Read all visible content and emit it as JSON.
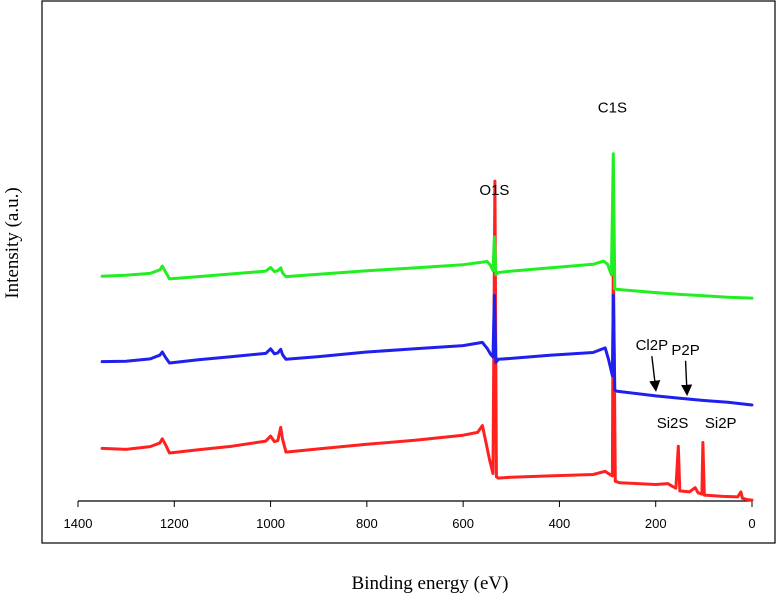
{
  "chart_data": {
    "type": "line",
    "title": "",
    "xlabel": "Binding energy (eV)",
    "ylabel": "Intensity (a.u.)",
    "xlim": [
      1400,
      0
    ],
    "xreversed": true,
    "xticks": [
      "1400",
      "1200",
      "1000",
      "800",
      "600",
      "400",
      "200",
      "0"
    ],
    "xtick_values": [
      1400,
      1200,
      1000,
      800,
      600,
      400,
      200,
      0
    ],
    "ylim": [
      0,
      100
    ],
    "yticks_shown": false,
    "series": [
      {
        "name": "red-spectrum",
        "color": "#ff2020",
        "points": [
          [
            1350,
            11.5
          ],
          [
            1300,
            11.3
          ],
          [
            1250,
            11.9
          ],
          [
            1230,
            12.7
          ],
          [
            1225,
            13.6
          ],
          [
            1218,
            12.3
          ],
          [
            1210,
            10.5
          ],
          [
            1150,
            11.2
          ],
          [
            1080,
            12.0
          ],
          [
            1010,
            13.1
          ],
          [
            1000,
            14.2
          ],
          [
            992,
            13.0
          ],
          [
            985,
            13.2
          ],
          [
            979,
            16.1
          ],
          [
            975,
            13.5
          ],
          [
            968,
            10.7
          ],
          [
            900,
            11.4
          ],
          [
            800,
            12.4
          ],
          [
            700,
            13.3
          ],
          [
            600,
            14.4
          ],
          [
            570,
            15.0
          ],
          [
            560,
            16.5
          ],
          [
            553,
            13.0
          ],
          [
            545,
            9.0
          ],
          [
            538,
            6.0
          ],
          [
            534,
            70.0
          ],
          [
            531,
            5.3
          ],
          [
            527,
            5.0
          ],
          [
            500,
            5.2
          ],
          [
            420,
            5.5
          ],
          [
            330,
            5.8
          ],
          [
            305,
            6.5
          ],
          [
            298,
            6.0
          ],
          [
            290,
            5.5
          ],
          [
            288,
            56.0
          ],
          [
            284,
            4.3
          ],
          [
            275,
            4.0
          ],
          [
            200,
            3.6
          ],
          [
            175,
            3.8
          ],
          [
            165,
            3.2
          ],
          [
            158,
            2.8
          ],
          [
            153,
            12.0
          ],
          [
            150,
            2.2
          ],
          [
            130,
            2.0
          ],
          [
            118,
            2.9
          ],
          [
            112,
            1.8
          ],
          [
            104,
            1.5
          ],
          [
            102,
            12.8
          ],
          [
            99,
            1.3
          ],
          [
            60,
            1.0
          ],
          [
            30,
            0.9
          ],
          [
            23,
            2.0
          ],
          [
            20,
            0.6
          ],
          [
            10,
            0.3
          ],
          [
            0,
            0.2
          ]
        ]
      },
      {
        "name": "blue-spectrum",
        "color": "#2020ee",
        "points": [
          [
            1350,
            30.5
          ],
          [
            1300,
            30.6
          ],
          [
            1250,
            31.1
          ],
          [
            1230,
            31.9
          ],
          [
            1225,
            32.6
          ],
          [
            1218,
            31.4
          ],
          [
            1210,
            30.2
          ],
          [
            1150,
            30.9
          ],
          [
            1080,
            31.6
          ],
          [
            1010,
            32.3
          ],
          [
            1000,
            33.3
          ],
          [
            992,
            32.2
          ],
          [
            985,
            32.4
          ],
          [
            979,
            33.2
          ],
          [
            975,
            32.0
          ],
          [
            968,
            31.0
          ],
          [
            900,
            31.6
          ],
          [
            800,
            32.6
          ],
          [
            700,
            33.3
          ],
          [
            600,
            34.0
          ],
          [
            560,
            34.7
          ],
          [
            550,
            33.4
          ],
          [
            543,
            32.1
          ],
          [
            538,
            31.5
          ],
          [
            535,
            45.0
          ],
          [
            532,
            30.3
          ],
          [
            527,
            31.0
          ],
          [
            500,
            31.2
          ],
          [
            420,
            31.9
          ],
          [
            330,
            32.5
          ],
          [
            305,
            33.5
          ],
          [
            298,
            31.0
          ],
          [
            290,
            27.4
          ],
          [
            288,
            45.0
          ],
          [
            285,
            24.3
          ],
          [
            280,
            24.0
          ],
          [
            200,
            23.0
          ],
          [
            150,
            22.5
          ],
          [
            100,
            22.0
          ],
          [
            50,
            21.6
          ],
          [
            0,
            21.0
          ]
        ]
      },
      {
        "name": "green-spectrum",
        "color": "#22ee22",
        "points": [
          [
            1350,
            49.2
          ],
          [
            1300,
            49.4
          ],
          [
            1250,
            49.8
          ],
          [
            1230,
            50.6
          ],
          [
            1225,
            51.4
          ],
          [
            1218,
            50.1
          ],
          [
            1210,
            48.6
          ],
          [
            1150,
            49.1
          ],
          [
            1080,
            49.7
          ],
          [
            1010,
            50.3
          ],
          [
            1000,
            51.1
          ],
          [
            992,
            50.2
          ],
          [
            985,
            50.4
          ],
          [
            979,
            51.0
          ],
          [
            975,
            49.9
          ],
          [
            968,
            49.1
          ],
          [
            900,
            49.6
          ],
          [
            800,
            50.4
          ],
          [
            700,
            51.0
          ],
          [
            600,
            51.7
          ],
          [
            550,
            52.4
          ],
          [
            543,
            51.5
          ],
          [
            538,
            50.4
          ],
          [
            535,
            57.8
          ],
          [
            532,
            49.5
          ],
          [
            527,
            50.0
          ],
          [
            500,
            50.3
          ],
          [
            420,
            51.0
          ],
          [
            330,
            51.8
          ],
          [
            308,
            52.5
          ],
          [
            300,
            51.8
          ],
          [
            292,
            49.5
          ],
          [
            288,
            76.0
          ],
          [
            285,
            46.4
          ],
          [
            280,
            46.3
          ],
          [
            200,
            45.6
          ],
          [
            150,
            45.2
          ],
          [
            100,
            44.9
          ],
          [
            50,
            44.6
          ],
          [
            0,
            44.4
          ]
        ]
      }
    ],
    "annotations": [
      {
        "text": "C1S",
        "x": 290,
        "y": 85,
        "arrow": false
      },
      {
        "text": "O1S",
        "x": 535,
        "y": 67,
        "arrow": false
      },
      {
        "text": "Cl2P",
        "x": 208,
        "y": 33,
        "arrow": true,
        "arrow_to": [
          200,
          24.5
        ]
      },
      {
        "text": "P2P",
        "x": 138,
        "y": 32,
        "arrow": true,
        "arrow_to": [
          135,
          23.6
        ]
      },
      {
        "text": "Si2S",
        "x": 165,
        "y": 16,
        "arrow": false
      },
      {
        "text": "Si2P",
        "x": 65,
        "y": 16,
        "arrow": false
      }
    ]
  }
}
